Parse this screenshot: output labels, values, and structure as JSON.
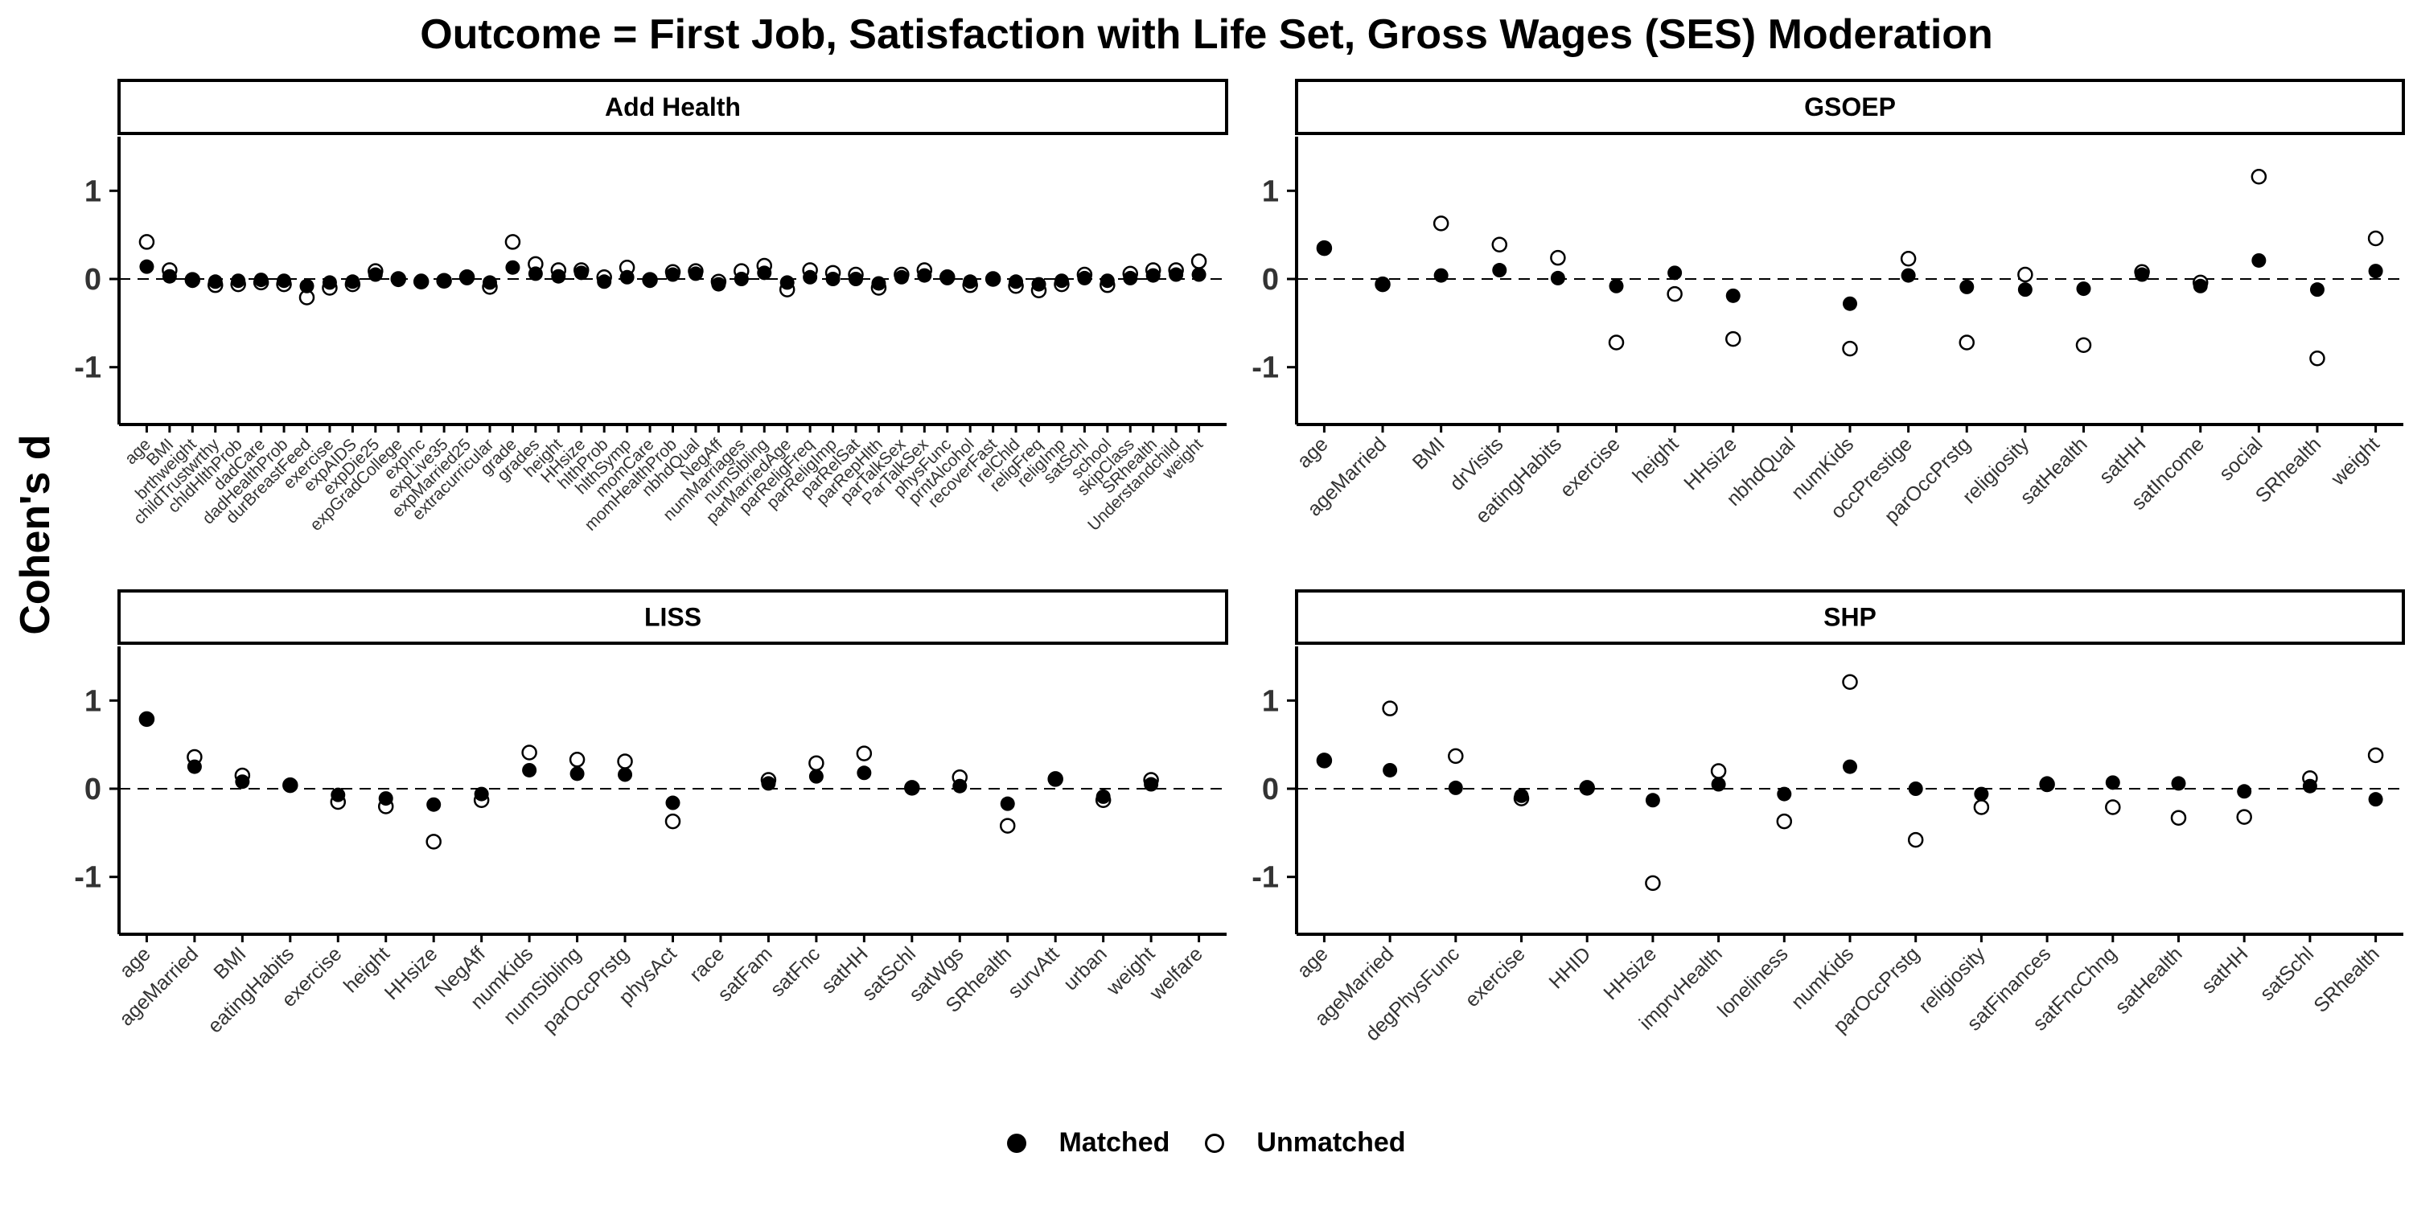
{
  "title": "Outcome = First Job, Satisfaction with Life Set, Gross Wages (SES) Moderation",
  "ylabel": "Cohen's d",
  "legend": {
    "matched_label": "Matched",
    "unmatched_label": "Unmatched"
  },
  "chart_data": {
    "type": "scatter",
    "title": "Outcome = First Job, Satisfaction with Life Set, Gross Wages (SES) Moderation",
    "ylabel": "Cohen's d",
    "ylim": [
      -1.65,
      1.65
    ],
    "yticks": [
      -1,
      0,
      1
    ],
    "reference_line": 0,
    "legend_position": "bottom",
    "series_names": [
      "Matched",
      "Unmatched"
    ],
    "panels": [
      {
        "name": "Add Health",
        "categories": [
          "age",
          "BMI",
          "brthweight",
          "childTrustwrthy",
          "chldHlthProb",
          "dadCare",
          "dadHealthProb",
          "durBreastFeed",
          "exercise",
          "expAIDS",
          "expDie25",
          "expGradCollege",
          "expInc",
          "expLive35",
          "expMarried25",
          "extracurricular",
          "grade",
          "grades",
          "height",
          "HHsize",
          "hlthProb",
          "hlthSymp",
          "momCare",
          "momHealthProb",
          "nbhdQual",
          "NegAff",
          "numMarriages",
          "numSibling",
          "parMarriedAge",
          "parReligFreq",
          "parReligImp",
          "parRelSat",
          "parRepHlth",
          "parTalkSex",
          "ParTalkSex",
          "physFunc",
          "prntAlcohol",
          "recoverFast",
          "relChld",
          "religFreq",
          "religImp",
          "satSchl",
          "school",
          "skipClass",
          "SRhealth",
          "Understandchild",
          "weight"
        ],
        "matched": [
          0.14,
          0.03,
          -0.02,
          -0.03,
          -0.02,
          -0.01,
          -0.02,
          -0.08,
          -0.04,
          -0.03,
          0.05,
          -0.01,
          -0.02,
          -0.02,
          0.01,
          -0.04,
          0.13,
          0.06,
          0.03,
          0.07,
          -0.03,
          0.02,
          -0.02,
          0.05,
          0.06,
          -0.06,
          0.0,
          0.07,
          -0.04,
          0.02,
          0.0,
          0.0,
          -0.05,
          0.02,
          0.04,
          0.01,
          -0.03,
          0.0,
          -0.03,
          -0.06,
          -0.02,
          0.01,
          -0.02,
          0.01,
          0.04,
          0.05,
          0.05
        ],
        "unmatched": [
          0.42,
          0.1,
          -0.01,
          -0.07,
          -0.06,
          -0.04,
          -0.06,
          -0.21,
          -0.1,
          -0.06,
          0.09,
          0.0,
          -0.03,
          -0.02,
          0.02,
          -0.09,
          0.42,
          0.17,
          0.1,
          0.1,
          0.02,
          0.13,
          -0.01,
          0.08,
          0.09,
          -0.03,
          0.09,
          0.15,
          -0.12,
          0.1,
          0.07,
          0.05,
          -0.1,
          0.05,
          0.1,
          0.02,
          -0.07,
          0.0,
          -0.08,
          -0.13,
          -0.06,
          0.05,
          -0.07,
          0.06,
          0.1,
          0.1,
          0.2
        ]
      },
      {
        "name": "GSOEP",
        "categories": [
          "age",
          "ageMarried",
          "BMI",
          "drVisits",
          "eatingHabits",
          "exercise",
          "height",
          "HHsize",
          "nbhdQual",
          "numKids",
          "occPrestige",
          "parOccPrstg",
          "religiosity",
          "satHealth",
          "satHH",
          "satIncome",
          "social",
          "SRhealth",
          "weight"
        ],
        "matched": [
          0.35,
          -0.06,
          0.04,
          0.1,
          0.01,
          -0.08,
          0.07,
          -0.19,
          null,
          -0.28,
          0.04,
          -0.09,
          -0.12,
          -0.11,
          0.05,
          -0.08,
          0.21,
          -0.12,
          0.09
        ],
        "unmatched": [
          0.35,
          -0.06,
          0.63,
          0.39,
          0.24,
          -0.72,
          -0.17,
          -0.68,
          null,
          -0.79,
          0.23,
          -0.72,
          0.05,
          -0.75,
          0.08,
          -0.04,
          1.16,
          -0.9,
          0.46
        ]
      },
      {
        "name": "LISS",
        "categories": [
          "age",
          "ageMarried",
          "BMI",
          "eatingHabits",
          "exercise",
          "height",
          "HHsize",
          "NegAff",
          "numKids",
          "numSibling",
          "parOccPrstg",
          "physAct",
          "race",
          "satFam",
          "satFnc",
          "satHH",
          "satSchl",
          "satWgs",
          "SRhealth",
          "survAtt",
          "urban",
          "weight",
          "welfare"
        ],
        "matched": [
          0.79,
          0.25,
          0.08,
          0.04,
          -0.07,
          -0.11,
          -0.18,
          -0.06,
          0.21,
          0.17,
          0.16,
          -0.16,
          null,
          0.06,
          0.14,
          0.18,
          0.01,
          0.03,
          -0.17,
          0.11,
          -0.09,
          0.05,
          null
        ],
        "unmatched": [
          0.79,
          0.36,
          0.15,
          0.04,
          -0.15,
          -0.2,
          -0.6,
          -0.13,
          0.41,
          0.33,
          0.31,
          -0.37,
          null,
          0.1,
          0.29,
          0.4,
          0.01,
          0.13,
          -0.42,
          0.11,
          -0.13,
          0.1,
          null
        ]
      },
      {
        "name": "SHP",
        "categories": [
          "age",
          "ageMarried",
          "degPhysFunc",
          "exercise",
          "HHID",
          "HHsize",
          "imprvHealth",
          "loneliness",
          "numKids",
          "parOccPrstg",
          "religiosity",
          "satFinances",
          "satFncChng",
          "satHealth",
          "satHH",
          "satSchl",
          "SRhealth"
        ],
        "matched": [
          0.32,
          0.21,
          0.01,
          -0.08,
          0.01,
          -0.13,
          0.05,
          -0.06,
          0.25,
          0.0,
          -0.06,
          0.06,
          0.07,
          0.06,
          -0.03,
          0.03,
          -0.12
        ],
        "unmatched": [
          0.32,
          0.91,
          0.37,
          -0.11,
          0.01,
          -1.07,
          0.2,
          -0.37,
          1.21,
          -0.58,
          -0.21,
          0.05,
          -0.21,
          -0.33,
          -0.32,
          0.12,
          0.38
        ]
      }
    ]
  }
}
